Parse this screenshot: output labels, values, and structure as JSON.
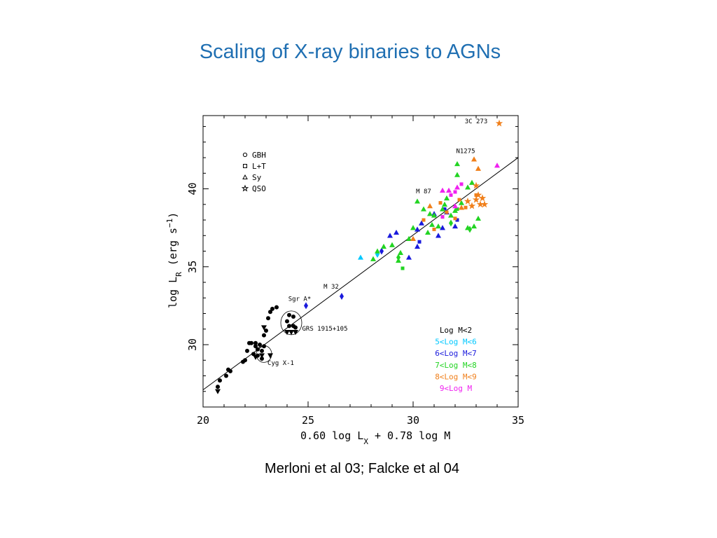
{
  "slide": {
    "title": "Scaling of X-ray binaries to AGNs",
    "caption": "Merloni et al 03; Falcke et al 04"
  },
  "chart_data": {
    "type": "scatter",
    "xlabel": "0.60 log L_X + 0.78 log M",
    "ylabel": "log L_R (erg s^-1)",
    "xlim": [
      20,
      35
    ],
    "ylim": [
      26,
      44.7
    ],
    "x_ticks": [
      20,
      25,
      30,
      35
    ],
    "y_ticks": [
      30,
      35,
      40
    ],
    "grid": false,
    "shape_legend": [
      "GBH",
      "L+T",
      "Sy",
      "QSO"
    ],
    "mass_legend": [
      {
        "label": "Log M<2",
        "color": "#000000"
      },
      {
        "label": "5<Log M<6",
        "color": "#00c8ff"
      },
      {
        "label": "6<Log M<7",
        "color": "#1a1adc"
      },
      {
        "label": "7<Log M<8",
        "color": "#22d422"
      },
      {
        "label": "8<Log M<9",
        "color": "#f07f1a"
      },
      {
        "label": "9<Log M",
        "color": "#f020f0"
      }
    ],
    "fit_line": {
      "x": [
        20,
        35
      ],
      "y": [
        27.1,
        42.0
      ]
    },
    "annotations": [
      {
        "text": "3C 273",
        "x": 33.0,
        "y": 44.2
      },
      {
        "text": "N1275",
        "x": 32.5,
        "y": 42.3
      },
      {
        "text": "M 87",
        "x": 30.5,
        "y": 39.7
      },
      {
        "text": "M 32",
        "x": 26.1,
        "y": 33.6
      },
      {
        "text": "Sgr A*",
        "x": 24.6,
        "y": 32.8
      },
      {
        "text": "GRS 1915+105",
        "x": 25.8,
        "y": 30.9
      },
      {
        "text": "Cyg X-1",
        "x": 23.7,
        "y": 28.7
      }
    ],
    "series": [
      {
        "group": 0,
        "marker": "circle",
        "points": [
          [
            20.7,
            27.3
          ],
          [
            20.8,
            27.7
          ],
          [
            21.1,
            28.0
          ],
          [
            21.2,
            28.4
          ],
          [
            21.3,
            28.3
          ],
          [
            21.9,
            28.9
          ],
          [
            22.0,
            29.0
          ],
          [
            22.1,
            29.6
          ],
          [
            22.2,
            30.1
          ],
          [
            22.3,
            30.1
          ],
          [
            22.4,
            29.4
          ],
          [
            22.5,
            29.9
          ],
          [
            22.5,
            30.1
          ],
          [
            22.6,
            29.7
          ],
          [
            22.6,
            29.3
          ],
          [
            22.7,
            30.0
          ],
          [
            22.8,
            29.6
          ],
          [
            22.8,
            29.1
          ],
          [
            22.9,
            29.9
          ],
          [
            22.9,
            30.6
          ],
          [
            23.0,
            30.9
          ],
          [
            23.1,
            31.7
          ],
          [
            23.2,
            32.1
          ],
          [
            23.3,
            32.3
          ],
          [
            23.5,
            32.4
          ],
          [
            24.0,
            31.5
          ],
          [
            24.1,
            31.2
          ],
          [
            24.3,
            31.2
          ],
          [
            24.4,
            31.1
          ],
          [
            24.1,
            31.9
          ],
          [
            24.3,
            31.8
          ]
        ]
      },
      {
        "group": 0,
        "marker": "triangle-down",
        "points": [
          [
            20.7,
            27.0
          ],
          [
            22.5,
            29.2
          ],
          [
            22.8,
            29.3
          ],
          [
            22.9,
            31.1
          ],
          [
            23.2,
            29.3
          ],
          [
            24.0,
            30.8
          ],
          [
            24.2,
            30.8
          ],
          [
            24.4,
            30.8
          ]
        ]
      },
      {
        "group": 1,
        "marker": "triangle",
        "points": [
          [
            27.5,
            35.6
          ]
        ]
      },
      {
        "group": 1,
        "marker": "diamond",
        "points": [
          [
            28.3,
            35.8
          ]
        ]
      },
      {
        "group": 2,
        "marker": "diamond",
        "points": [
          [
            24.9,
            32.5
          ],
          [
            26.6,
            33.1
          ],
          [
            28.5,
            36.0
          ]
        ]
      },
      {
        "group": 2,
        "marker": "triangle",
        "points": [
          [
            28.9,
            37.0
          ],
          [
            29.2,
            37.2
          ],
          [
            29.8,
            35.6
          ],
          [
            30.2,
            36.3
          ],
          [
            30.4,
            37.8
          ],
          [
            31.0,
            38.4
          ],
          [
            31.2,
            37.0
          ],
          [
            31.6,
            38.5
          ],
          [
            32.0,
            37.6
          ],
          [
            31.4,
            37.5
          ],
          [
            30.2,
            37.4
          ]
        ]
      },
      {
        "group": 2,
        "marker": "square",
        "points": [
          [
            30.3,
            36.6
          ],
          [
            31.5,
            38.7
          ],
          [
            32.1,
            38.0
          ]
        ]
      },
      {
        "group": 3,
        "marker": "triangle",
        "points": [
          [
            28.1,
            35.5
          ],
          [
            28.3,
            36.0
          ],
          [
            28.6,
            36.3
          ],
          [
            29.0,
            36.4
          ],
          [
            29.3,
            35.4
          ],
          [
            29.4,
            35.9
          ],
          [
            29.8,
            36.8
          ],
          [
            30.0,
            37.5
          ],
          [
            30.2,
            39.2
          ],
          [
            30.5,
            38.7
          ],
          [
            30.7,
            37.2
          ],
          [
            30.8,
            38.4
          ],
          [
            31.0,
            38.3
          ],
          [
            31.2,
            37.6
          ],
          [
            31.4,
            38.7
          ],
          [
            31.6,
            39.4
          ],
          [
            31.8,
            38.3
          ],
          [
            32.0,
            38.6
          ],
          [
            32.1,
            41.6
          ],
          [
            32.1,
            40.9
          ],
          [
            32.3,
            39.1
          ],
          [
            32.6,
            40.1
          ],
          [
            32.8,
            40.4
          ],
          [
            32.9,
            37.6
          ],
          [
            33.1,
            38.1
          ],
          [
            31.5,
            39.0
          ],
          [
            30.9,
            37.7
          ],
          [
            32.6,
            37.5
          ]
        ]
      },
      {
        "group": 3,
        "marker": "diamond",
        "points": [
          [
            29.3,
            35.6
          ],
          [
            32.7,
            37.4
          ],
          [
            31.8,
            37.8
          ]
        ]
      },
      {
        "group": 3,
        "marker": "square",
        "points": [
          [
            29.5,
            34.9
          ],
          [
            31.4,
            38.2
          ],
          [
            32.1,
            38.7
          ]
        ]
      },
      {
        "group": 4,
        "marker": "triangle",
        "points": [
          [
            30.8,
            38.9
          ],
          [
            32.3,
            38.8
          ],
          [
            32.9,
            41.9
          ],
          [
            33.1,
            41.3
          ],
          [
            30.0,
            36.8
          ]
        ]
      },
      {
        "group": 4,
        "marker": "square",
        "points": [
          [
            30.5,
            38.0
          ],
          [
            31.0,
            37.4
          ],
          [
            31.3,
            39.1
          ],
          [
            31.6,
            38.5
          ],
          [
            32.2,
            39.3
          ],
          [
            32.5,
            38.8
          ],
          [
            33.0,
            39.6
          ],
          [
            32.0,
            38.1
          ]
        ]
      },
      {
        "group": 4,
        "marker": "star",
        "points": [
          [
            34.1,
            44.2
          ],
          [
            33.0,
            40.2
          ],
          [
            33.1,
            39.6
          ],
          [
            33.3,
            39.4
          ],
          [
            33.2,
            39.0
          ],
          [
            33.4,
            39.0
          ],
          [
            32.8,
            38.9
          ],
          [
            32.6,
            39.2
          ],
          [
            33.0,
            39.3
          ]
        ]
      },
      {
        "group": 5,
        "marker": "square",
        "points": [
          [
            31.8,
            39.6
          ],
          [
            32.3,
            40.3
          ],
          [
            31.4,
            38.2
          ],
          [
            32.0,
            39.8
          ]
        ]
      },
      {
        "group": 5,
        "marker": "triangle",
        "points": [
          [
            31.4,
            39.9
          ],
          [
            31.7,
            39.9
          ],
          [
            32.1,
            40.1
          ],
          [
            34.0,
            41.5
          ],
          [
            32.0,
            38.9
          ]
        ]
      }
    ]
  }
}
